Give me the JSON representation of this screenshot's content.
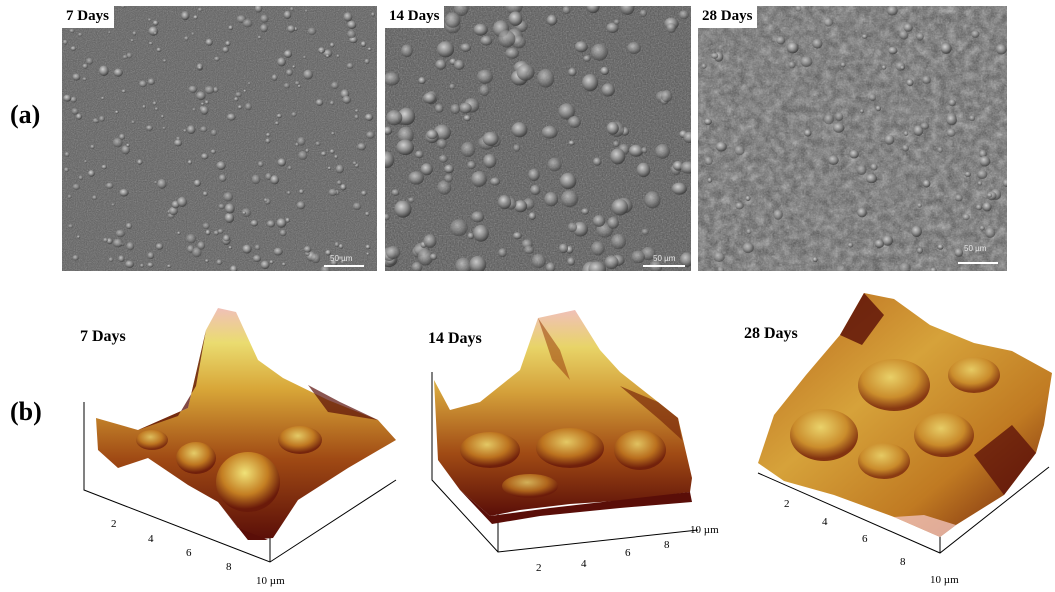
{
  "figure": {
    "row_a_label": "(a)",
    "row_b_label": "(b)"
  },
  "sem_panels": [
    {
      "label": "7 Days",
      "scale": "50 µm"
    },
    {
      "label": "14 Days",
      "scale": "50 µm"
    },
    {
      "label": "28 Days",
      "scale": "50 µm"
    }
  ],
  "afm_panels": [
    {
      "label": "7 Days",
      "axis_ticks": [
        "2",
        "4",
        "6",
        "8",
        "10 µm"
      ]
    },
    {
      "label": "14 Days",
      "axis_ticks_front": [
        "2",
        "4",
        "6",
        "8"
      ],
      "axis_ticks_side": [
        "10 µm"
      ]
    },
    {
      "label": "28 Days",
      "axis_ticks": [
        "2",
        "4",
        "6",
        "8",
        "10 µm"
      ]
    }
  ],
  "colors": {
    "afm_low": "#5a0e08",
    "afm_mid": "#b8661c",
    "afm_high": "#e8d468",
    "afm_peak": "#f0c0b8",
    "sem_base": "#585858"
  }
}
